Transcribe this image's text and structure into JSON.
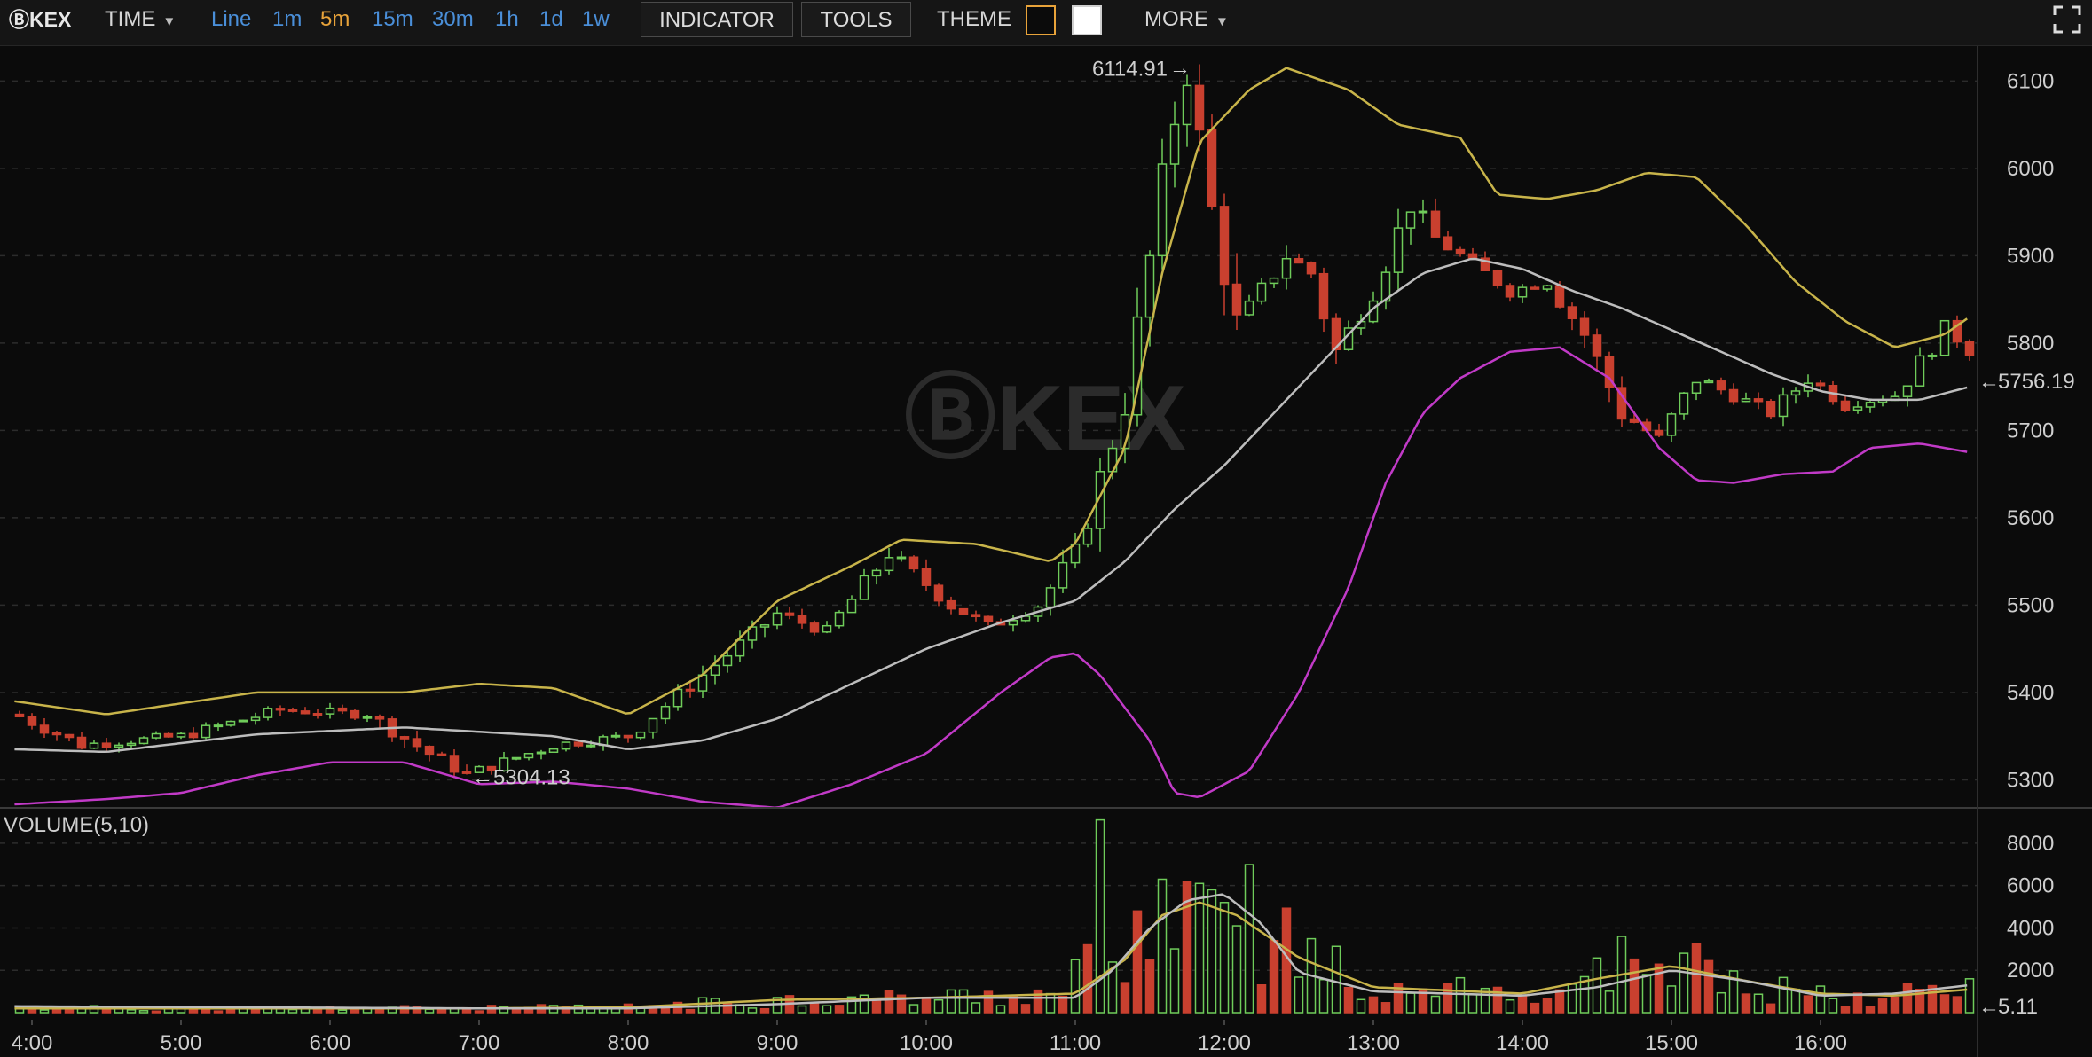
{
  "toolbar": {
    "logo": "ⒷKEX",
    "time_label": "TIME",
    "periods": [
      "Line",
      "1m",
      "5m",
      "15m",
      "30m",
      "1h",
      "1d",
      "1w"
    ],
    "active_period": "5m",
    "indicator_label": "INDICATOR",
    "tools_label": "TOOLS",
    "theme_label": "THEME",
    "more_label": "MORE",
    "colors": {
      "bg": "#151515",
      "period": "#4a8fd9",
      "active": "#e8a33a"
    }
  },
  "chart_data": {
    "type": "candlestick",
    "watermark": "ⒷKEX",
    "colors": {
      "up": "#6fcc5a",
      "down": "#c9402f",
      "upper_band": "#c8b44a",
      "mid_band": "#bdbdbd",
      "lower_band": "#c13ac7",
      "last_price": "#e6d14a",
      "grid": "#2c2c2c"
    },
    "x_ticks": [
      "4:00",
      "5:00",
      "6:00",
      "7:00",
      "8:00",
      "9:00",
      "10:00",
      "11:00",
      "12:00",
      "13:00",
      "14:00",
      "15:00",
      "16:00"
    ],
    "price_axis": {
      "ticks": [
        5300,
        5400,
        5500,
        5600,
        5700,
        5800,
        5900,
        6000,
        6100
      ],
      "ylim": [
        5270,
        6140
      ]
    },
    "high_label": "6114.91",
    "low_label": "5304.13",
    "last_price": "5756.19",
    "price_keypoints": [
      [
        "3:53",
        5375
      ],
      [
        "4:20",
        5340
      ],
      [
        "5:00",
        5350
      ],
      [
        "5:40",
        5380
      ],
      [
        "6:15",
        5375
      ],
      [
        "6:40",
        5330
      ],
      [
        "6:55",
        5306
      ],
      [
        "7:30",
        5340
      ],
      [
        "8:00",
        5350
      ],
      [
        "8:30",
        5420
      ],
      [
        "9:00",
        5490
      ],
      [
        "9:20",
        5470
      ],
      [
        "9:45",
        5560
      ],
      [
        "10:10",
        5500
      ],
      [
        "10:25",
        5475
      ],
      [
        "10:45",
        5500
      ],
      [
        "11:00",
        5560
      ],
      [
        "11:20",
        5730
      ],
      [
        "11:40",
        6060
      ],
      [
        "11:45",
        6110
      ],
      [
        "11:55",
        5950
      ],
      [
        "12:05",
        5820
      ],
      [
        "12:25",
        5900
      ],
      [
        "12:35",
        5880
      ],
      [
        "12:45",
        5790
      ],
      [
        "13:00",
        5860
      ],
      [
        "13:15",
        5960
      ],
      [
        "13:25",
        5920
      ],
      [
        "13:40",
        5890
      ],
      [
        "13:55",
        5860
      ],
      [
        "14:10",
        5870
      ],
      [
        "14:25",
        5810
      ],
      [
        "14:40",
        5720
      ],
      [
        "14:55",
        5690
      ],
      [
        "15:10",
        5760
      ],
      [
        "15:25",
        5740
      ],
      [
        "15:40",
        5720
      ],
      [
        "15:55",
        5760
      ],
      [
        "16:10",
        5730
      ],
      [
        "16:30",
        5740
      ],
      [
        "16:50",
        5815
      ],
      [
        "16:58",
        5800
      ],
      [
        "17:02",
        5785
      ]
    ],
    "bollinger": {
      "upper": [
        [
          "3:53",
          5390
        ],
        [
          "4:30",
          5375
        ],
        [
          "5:30",
          5400
        ],
        [
          "6:30",
          5400
        ],
        [
          "7:00",
          5410
        ],
        [
          "7:30",
          5405
        ],
        [
          "8:00",
          5375
        ],
        [
          "8:30",
          5420
        ],
        [
          "9:00",
          5505
        ],
        [
          "9:30",
          5545
        ],
        [
          "9:50",
          5575
        ],
        [
          "10:20",
          5570
        ],
        [
          "10:50",
          5550
        ],
        [
          "11:00",
          5570
        ],
        [
          "11:20",
          5680
        ],
        [
          "11:35",
          5880
        ],
        [
          "11:50",
          6030
        ],
        [
          "12:10",
          6090
        ],
        [
          "12:25",
          6115
        ],
        [
          "12:50",
          6090
        ],
        [
          "13:10",
          6050
        ],
        [
          "13:35",
          6035
        ],
        [
          "13:50",
          5970
        ],
        [
          "14:10",
          5965
        ],
        [
          "14:30",
          5975
        ],
        [
          "14:50",
          5995
        ],
        [
          "15:10",
          5990
        ],
        [
          "15:30",
          5935
        ],
        [
          "15:50",
          5870
        ],
        [
          "16:10",
          5825
        ],
        [
          "16:30",
          5795
        ],
        [
          "16:50",
          5810
        ],
        [
          "17:00",
          5830
        ]
      ],
      "middle": [
        [
          "3:53",
          5335
        ],
        [
          "4:30",
          5332
        ],
        [
          "5:30",
          5352
        ],
        [
          "6:30",
          5360
        ],
        [
          "7:30",
          5350
        ],
        [
          "8:00",
          5335
        ],
        [
          "8:30",
          5345
        ],
        [
          "9:00",
          5370
        ],
        [
          "9:30",
          5410
        ],
        [
          "10:00",
          5450
        ],
        [
          "10:30",
          5480
        ],
        [
          "11:00",
          5505
        ],
        [
          "11:20",
          5550
        ],
        [
          "11:40",
          5610
        ],
        [
          "12:00",
          5660
        ],
        [
          "12:20",
          5720
        ],
        [
          "12:40",
          5780
        ],
        [
          "13:00",
          5840
        ],
        [
          "13:20",
          5880
        ],
        [
          "13:40",
          5897
        ],
        [
          "14:00",
          5885
        ],
        [
          "14:20",
          5860
        ],
        [
          "14:40",
          5840
        ],
        [
          "15:00",
          5815
        ],
        [
          "15:20",
          5790
        ],
        [
          "15:40",
          5765
        ],
        [
          "16:00",
          5745
        ],
        [
          "16:20",
          5735
        ],
        [
          "16:40",
          5735
        ],
        [
          "17:00",
          5750
        ]
      ],
      "lower": [
        [
          "3:53",
          5272
        ],
        [
          "4:30",
          5278
        ],
        [
          "5:00",
          5285
        ],
        [
          "5:30",
          5305
        ],
        [
          "6:00",
          5320
        ],
        [
          "6:30",
          5320
        ],
        [
          "7:00",
          5295
        ],
        [
          "7:30",
          5298
        ],
        [
          "8:00",
          5290
        ],
        [
          "8:30",
          5275
        ],
        [
          "9:00",
          5268
        ],
        [
          "9:30",
          5295
        ],
        [
          "10:00",
          5330
        ],
        [
          "10:30",
          5400
        ],
        [
          "10:50",
          5440
        ],
        [
          "11:00",
          5445
        ],
        [
          "11:10",
          5420
        ],
        [
          "11:30",
          5345
        ],
        [
          "11:40",
          5285
        ],
        [
          "11:50",
          5280
        ],
        [
          "12:10",
          5310
        ],
        [
          "12:30",
          5400
        ],
        [
          "12:50",
          5520
        ],
        [
          "13:05",
          5640
        ],
        [
          "13:20",
          5720
        ],
        [
          "13:35",
          5760
        ],
        [
          "13:55",
          5790
        ],
        [
          "14:15",
          5795
        ],
        [
          "14:35",
          5760
        ],
        [
          "14:55",
          5680
        ],
        [
          "15:10",
          5643
        ],
        [
          "15:25",
          5640
        ],
        [
          "15:45",
          5650
        ],
        [
          "16:05",
          5653
        ],
        [
          "16:20",
          5680
        ],
        [
          "16:40",
          5685
        ],
        [
          "17:00",
          5675
        ]
      ]
    },
    "volume": {
      "label": "VOLUME(5,10)",
      "ticks": [
        2000,
        4000,
        6000,
        8000
      ],
      "ylim": [
        0,
        9000
      ],
      "last_value": "5.11",
      "spikes": [
        [
          "11:00",
          2500
        ],
        [
          "11:05",
          3200
        ],
        [
          "11:10",
          9100
        ],
        [
          "11:25",
          4800
        ],
        [
          "11:35",
          6300
        ],
        [
          "11:45",
          6200
        ],
        [
          "11:50",
          6100
        ],
        [
          "11:55",
          5800
        ],
        [
          "12:00",
          5200
        ],
        [
          "12:05",
          4100
        ],
        [
          "12:20",
          3400
        ],
        [
          "14:40",
          3600
        ],
        [
          "15:05",
          2800
        ]
      ],
      "ma5": [
        [
          "3:53",
          200
        ],
        [
          "7:00",
          200
        ],
        [
          "8:00",
          250
        ],
        [
          "9:00",
          600
        ],
        [
          "10:00",
          700
        ],
        [
          "11:00",
          900
        ],
        [
          "11:20",
          2500
        ],
        [
          "11:35",
          4600
        ],
        [
          "11:50",
          5200
        ],
        [
          "12:05",
          4600
        ],
        [
          "12:30",
          2600
        ],
        [
          "13:00",
          1200
        ],
        [
          "14:00",
          900
        ],
        [
          "14:30",
          1600
        ],
        [
          "15:00",
          2200
        ],
        [
          "15:30",
          1500
        ],
        [
          "16:00",
          900
        ],
        [
          "16:30",
          800
        ],
        [
          "17:00",
          1100
        ]
      ],
      "ma10": [
        [
          "3:53",
          300
        ],
        [
          "7:00",
          200
        ],
        [
          "8:00",
          200
        ],
        [
          "9:00",
          400
        ],
        [
          "10:00",
          700
        ],
        [
          "11:00",
          700
        ],
        [
          "11:15",
          2000
        ],
        [
          "11:30",
          4000
        ],
        [
          "11:45",
          5300
        ],
        [
          "12:00",
          5600
        ],
        [
          "12:15",
          4200
        ],
        [
          "12:30",
          1900
        ],
        [
          "13:00",
          1000
        ],
        [
          "14:00",
          800
        ],
        [
          "14:30",
          1200
        ],
        [
          "15:00",
          2000
        ],
        [
          "15:30",
          1500
        ],
        [
          "16:00",
          800
        ],
        [
          "16:30",
          900
        ],
        [
          "17:00",
          1300
        ]
      ]
    }
  }
}
